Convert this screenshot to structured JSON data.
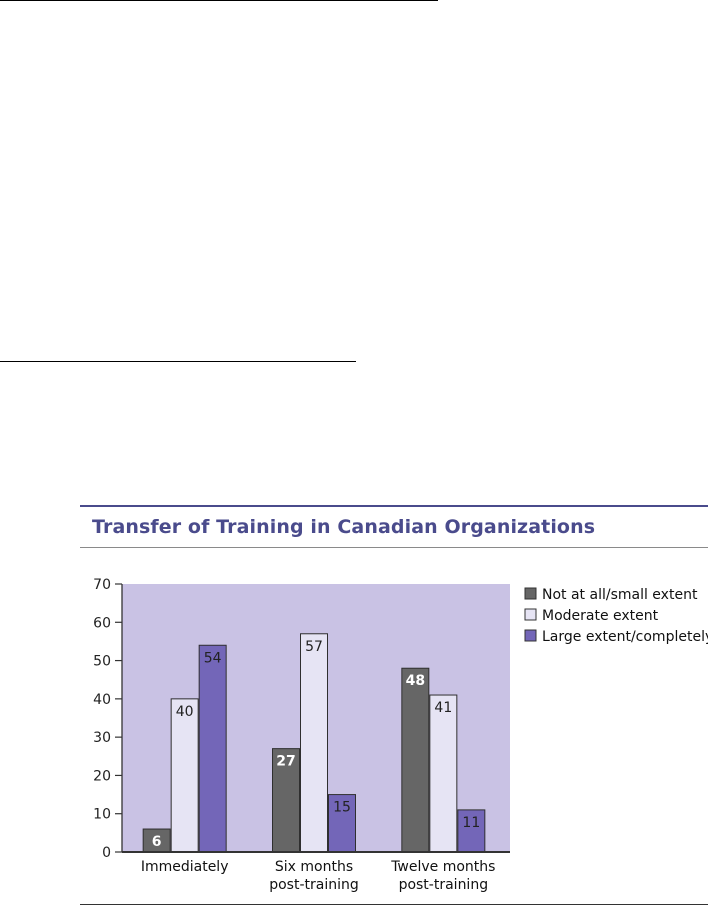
{
  "chart_data": {
    "type": "bar",
    "title": "Transfer of Training in Canadian Organizations",
    "categories": [
      [
        "Immediately"
      ],
      [
        "Six months",
        "post-training"
      ],
      [
        "Twelve months",
        "post-training"
      ]
    ],
    "series": [
      {
        "name": "Not at all/small extent",
        "values": [
          6,
          27,
          48
        ],
        "color": "#666666"
      },
      {
        "name": "Moderate extent",
        "values": [
          40,
          57,
          41
        ],
        "color": "#e6e4f4"
      },
      {
        "name": "Large extent/completely",
        "values": [
          54,
          15,
          11
        ],
        "color": "#7366b8"
      }
    ],
    "ylim": [
      0,
      70
    ],
    "yticks": [
      0,
      10,
      20,
      30,
      40,
      50,
      60,
      70
    ],
    "plot_background": "#c9c2e4",
    "title_color": "#4a4b8c",
    "legend_position": "right",
    "grid": false
  }
}
